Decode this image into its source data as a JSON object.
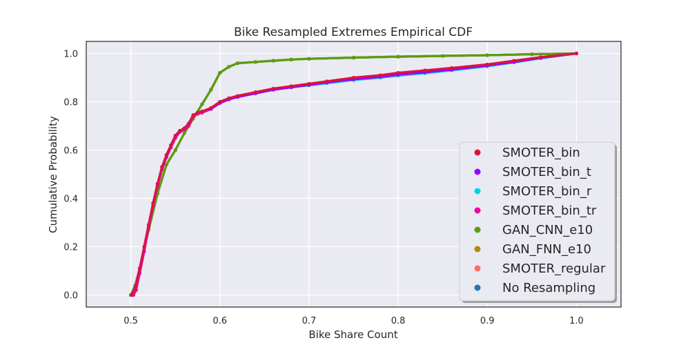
{
  "chart_data": {
    "type": "scatter",
    "title": "Bike Resampled Extremes Empirical CDF",
    "xlabel": "Bike Share Count",
    "ylabel": "Cumulative Probability",
    "xlim": [
      0.45,
      1.05
    ],
    "ylim": [
      -0.05,
      1.05
    ],
    "x_ticks": [
      "0.5",
      "0.6",
      "0.7",
      "0.8",
      "0.9",
      "1.0"
    ],
    "y_ticks": [
      "0.0",
      "0.2",
      "0.4",
      "0.6",
      "0.8",
      "1.0"
    ],
    "grid": true,
    "legend_position": "lower-right",
    "background": "#eaeaf2",
    "series": [
      {
        "name": "SMOTER_bin",
        "color": "#dc143c",
        "x": [
          0.501,
          0.505,
          0.51,
          0.515,
          0.52,
          0.525,
          0.53,
          0.535,
          0.54,
          0.545,
          0.55,
          0.555,
          0.56,
          0.565,
          0.57,
          0.575,
          0.58,
          0.59,
          0.6,
          0.61,
          0.62,
          0.64,
          0.66,
          0.68,
          0.7,
          0.72,
          0.75,
          0.78,
          0.8,
          0.83,
          0.86,
          0.9,
          0.93,
          0.96,
          1.0
        ],
        "y": [
          0.0,
          0.03,
          0.11,
          0.2,
          0.29,
          0.38,
          0.46,
          0.53,
          0.58,
          0.62,
          0.66,
          0.68,
          0.69,
          0.71,
          0.745,
          0.755,
          0.76,
          0.775,
          0.8,
          0.815,
          0.825,
          0.84,
          0.855,
          0.865,
          0.875,
          0.885,
          0.9,
          0.91,
          0.92,
          0.93,
          0.94,
          0.955,
          0.97,
          0.985,
          1.0
        ]
      },
      {
        "name": "SMOTER_bin_t",
        "color": "#9b00ff",
        "x": [
          0.501,
          0.505,
          0.51,
          0.515,
          0.52,
          0.525,
          0.53,
          0.535,
          0.54,
          0.545,
          0.55,
          0.555,
          0.56,
          0.565,
          0.57,
          0.575,
          0.58,
          0.59,
          0.6,
          0.61,
          0.62,
          0.64,
          0.66,
          0.68,
          0.7,
          0.72,
          0.75,
          0.78,
          0.8,
          0.83,
          0.86,
          0.9,
          0.93,
          0.96,
          1.0
        ],
        "y": [
          0.0,
          0.03,
          0.11,
          0.2,
          0.29,
          0.38,
          0.46,
          0.53,
          0.58,
          0.62,
          0.66,
          0.68,
          0.69,
          0.71,
          0.745,
          0.755,
          0.76,
          0.772,
          0.795,
          0.81,
          0.82,
          0.835,
          0.85,
          0.86,
          0.87,
          0.88,
          0.893,
          0.903,
          0.912,
          0.922,
          0.933,
          0.95,
          0.965,
          0.982,
          1.0
        ]
      },
      {
        "name": "SMOTER_bin_r",
        "color": "#00d5ec",
        "x": [
          0.501,
          0.505,
          0.51,
          0.515,
          0.52,
          0.525,
          0.53,
          0.535,
          0.54,
          0.545,
          0.55,
          0.555,
          0.56,
          0.565,
          0.57,
          0.575,
          0.58,
          0.59,
          0.6,
          0.61,
          0.62,
          0.64,
          0.66,
          0.68,
          0.7,
          0.72,
          0.75,
          0.78,
          0.8,
          0.83,
          0.86,
          0.9,
          0.93,
          0.96,
          1.0
        ],
        "y": [
          0.0,
          0.03,
          0.11,
          0.2,
          0.29,
          0.38,
          0.46,
          0.53,
          0.58,
          0.62,
          0.66,
          0.68,
          0.69,
          0.71,
          0.745,
          0.755,
          0.76,
          0.772,
          0.795,
          0.81,
          0.82,
          0.835,
          0.85,
          0.86,
          0.868,
          0.877,
          0.89,
          0.9,
          0.908,
          0.918,
          0.93,
          0.947,
          0.963,
          0.98,
          1.0
        ]
      },
      {
        "name": "SMOTER_bin_tr",
        "color": "#f000a8",
        "x": [
          0.503,
          0.506,
          0.51,
          0.515,
          0.52,
          0.525,
          0.53,
          0.535,
          0.54,
          0.545,
          0.55,
          0.555,
          0.56,
          0.565,
          0.57,
          0.575,
          0.58,
          0.59,
          0.6,
          0.61,
          0.62,
          0.64,
          0.66,
          0.68,
          0.7,
          0.72,
          0.75,
          0.78,
          0.8,
          0.83,
          0.86,
          0.9,
          0.93,
          0.96,
          1.0
        ],
        "y": [
          0.0,
          0.02,
          0.09,
          0.18,
          0.28,
          0.37,
          0.45,
          0.52,
          0.57,
          0.61,
          0.65,
          0.675,
          0.685,
          0.7,
          0.74,
          0.75,
          0.755,
          0.77,
          0.795,
          0.81,
          0.822,
          0.838,
          0.852,
          0.862,
          0.873,
          0.883,
          0.897,
          0.908,
          0.917,
          0.928,
          0.938,
          0.953,
          0.968,
          0.984,
          1.0
        ]
      },
      {
        "name": "GAN_CNN_e10",
        "color": "#5a9e0c",
        "x": [
          0.5,
          0.505,
          0.51,
          0.52,
          0.53,
          0.54,
          0.55,
          0.56,
          0.57,
          0.58,
          0.59,
          0.6,
          0.61,
          0.62,
          0.64,
          0.66,
          0.68,
          0.7,
          0.75,
          0.8,
          0.85,
          0.9,
          0.95,
          1.0
        ],
        "y": [
          0.0,
          0.04,
          0.11,
          0.27,
          0.42,
          0.54,
          0.6,
          0.67,
          0.73,
          0.79,
          0.85,
          0.92,
          0.945,
          0.96,
          0.965,
          0.97,
          0.975,
          0.978,
          0.983,
          0.987,
          0.99,
          0.993,
          0.997,
          1.0
        ]
      },
      {
        "name": "GAN_FNN_e10",
        "color": "#b8860b",
        "x": [
          0.5,
          0.505,
          0.51,
          0.52,
          0.53,
          0.54,
          0.55,
          0.56,
          0.57,
          0.58,
          0.59,
          0.6,
          0.61,
          0.62,
          0.64,
          0.66,
          0.68,
          0.7,
          0.75,
          0.8,
          0.85,
          0.9,
          0.95,
          1.0
        ],
        "y": [
          0.0,
          0.04,
          0.11,
          0.27,
          0.42,
          0.54,
          0.6,
          0.67,
          0.73,
          0.79,
          0.85,
          0.92,
          0.945,
          0.96,
          0.965,
          0.97,
          0.975,
          0.978,
          0.983,
          0.987,
          0.99,
          0.993,
          0.997,
          1.0
        ]
      },
      {
        "name": "SMOTER_regular",
        "color": "#fa7060",
        "x": [
          0.5,
          0.505,
          0.51,
          0.52,
          0.53,
          0.54,
          0.55,
          0.56,
          0.57,
          0.58,
          0.59,
          0.6,
          0.61,
          0.62,
          0.64,
          0.66,
          0.68,
          0.7,
          0.75,
          0.8,
          0.85,
          0.9,
          0.95,
          0.97,
          1.0
        ],
        "y": [
          0.0,
          0.04,
          0.11,
          0.27,
          0.42,
          0.54,
          0.6,
          0.67,
          0.73,
          0.79,
          0.85,
          0.92,
          0.945,
          0.96,
          0.965,
          0.97,
          0.975,
          0.978,
          0.983,
          0.987,
          0.99,
          0.993,
          0.997,
          0.998,
          1.0
        ]
      },
      {
        "name": "No Resampling",
        "color": "#1f77b4",
        "x": [
          0.5,
          0.505,
          0.51,
          0.52,
          0.53,
          0.54,
          0.55,
          0.56,
          0.57,
          0.58,
          0.59,
          0.6,
          0.61,
          0.62,
          0.64,
          0.66,
          0.68,
          0.7,
          0.75,
          0.8,
          0.85,
          0.9,
          0.95,
          1.0
        ],
        "y": [
          0.0,
          0.04,
          0.11,
          0.27,
          0.42,
          0.54,
          0.6,
          0.67,
          0.73,
          0.79,
          0.85,
          0.92,
          0.945,
          0.96,
          0.965,
          0.97,
          0.975,
          0.978,
          0.983,
          0.987,
          0.99,
          0.993,
          0.997,
          1.0
        ]
      }
    ]
  }
}
